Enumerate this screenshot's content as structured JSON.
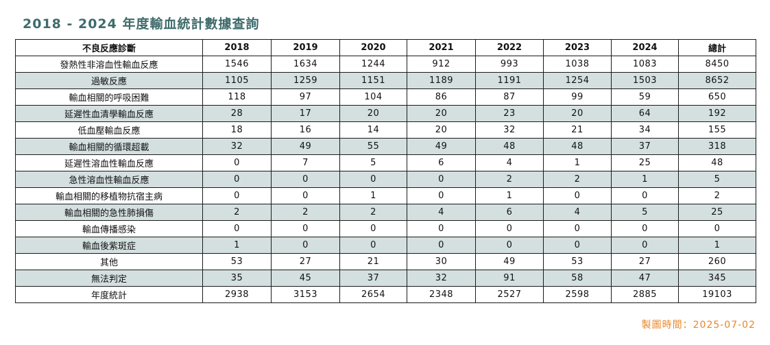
{
  "title": "2018 - 2024 年度輸血統計數據查詢",
  "table": {
    "headers": [
      "不良反應診斷",
      "2018",
      "2019",
      "2020",
      "2021",
      "2022",
      "2023",
      "2024",
      "總計"
    ],
    "rows": [
      [
        "發熱性非溶血性輸血反應",
        "1546",
        "1634",
        "1244",
        "912",
        "993",
        "1038",
        "1083",
        "8450"
      ],
      [
        "過敏反應",
        "1105",
        "1259",
        "1151",
        "1189",
        "1191",
        "1254",
        "1503",
        "8652"
      ],
      [
        "輸血相關的呼吸困難",
        "118",
        "97",
        "104",
        "86",
        "87",
        "99",
        "59",
        "650"
      ],
      [
        "延遲性血清學輸血反應",
        "28",
        "17",
        "20",
        "20",
        "23",
        "20",
        "64",
        "192"
      ],
      [
        "低血壓輸血反應",
        "18",
        "16",
        "14",
        "20",
        "32",
        "21",
        "34",
        "155"
      ],
      [
        "輸血相關的循環超載",
        "32",
        "49",
        "55",
        "49",
        "48",
        "48",
        "37",
        "318"
      ],
      [
        "延遲性溶血性輸血反應",
        "0",
        "7",
        "5",
        "6",
        "4",
        "1",
        "25",
        "48"
      ],
      [
        "急性溶血性輸血反應",
        "0",
        "0",
        "0",
        "0",
        "2",
        "2",
        "1",
        "5"
      ],
      [
        "輸血相關的移植物抗宿主病",
        "0",
        "0",
        "1",
        "0",
        "1",
        "0",
        "0",
        "2"
      ],
      [
        "輸血相關的急性肺損傷",
        "2",
        "2",
        "2",
        "4",
        "6",
        "4",
        "5",
        "25"
      ],
      [
        "輸血傳播感染",
        "0",
        "0",
        "0",
        "0",
        "0",
        "0",
        "0",
        "0"
      ],
      [
        "輸血後紫斑症",
        "1",
        "0",
        "0",
        "0",
        "0",
        "0",
        "0",
        "1"
      ],
      [
        "其他",
        "53",
        "27",
        "21",
        "30",
        "49",
        "53",
        "27",
        "260"
      ],
      [
        "無法判定",
        "35",
        "45",
        "37",
        "32",
        "91",
        "58",
        "47",
        "345"
      ],
      [
        "年度統計",
        "2938",
        "3153",
        "2654",
        "2348",
        "2527",
        "2598",
        "2885",
        "19103"
      ]
    ]
  },
  "footer": {
    "generated_time": "製圖時間：2025-07-02"
  },
  "colors": {
    "title": "#3f6b6b",
    "shaded_row": "#d4dfe0",
    "footer_text": "#e8872a",
    "border": "#1a1a1a"
  }
}
